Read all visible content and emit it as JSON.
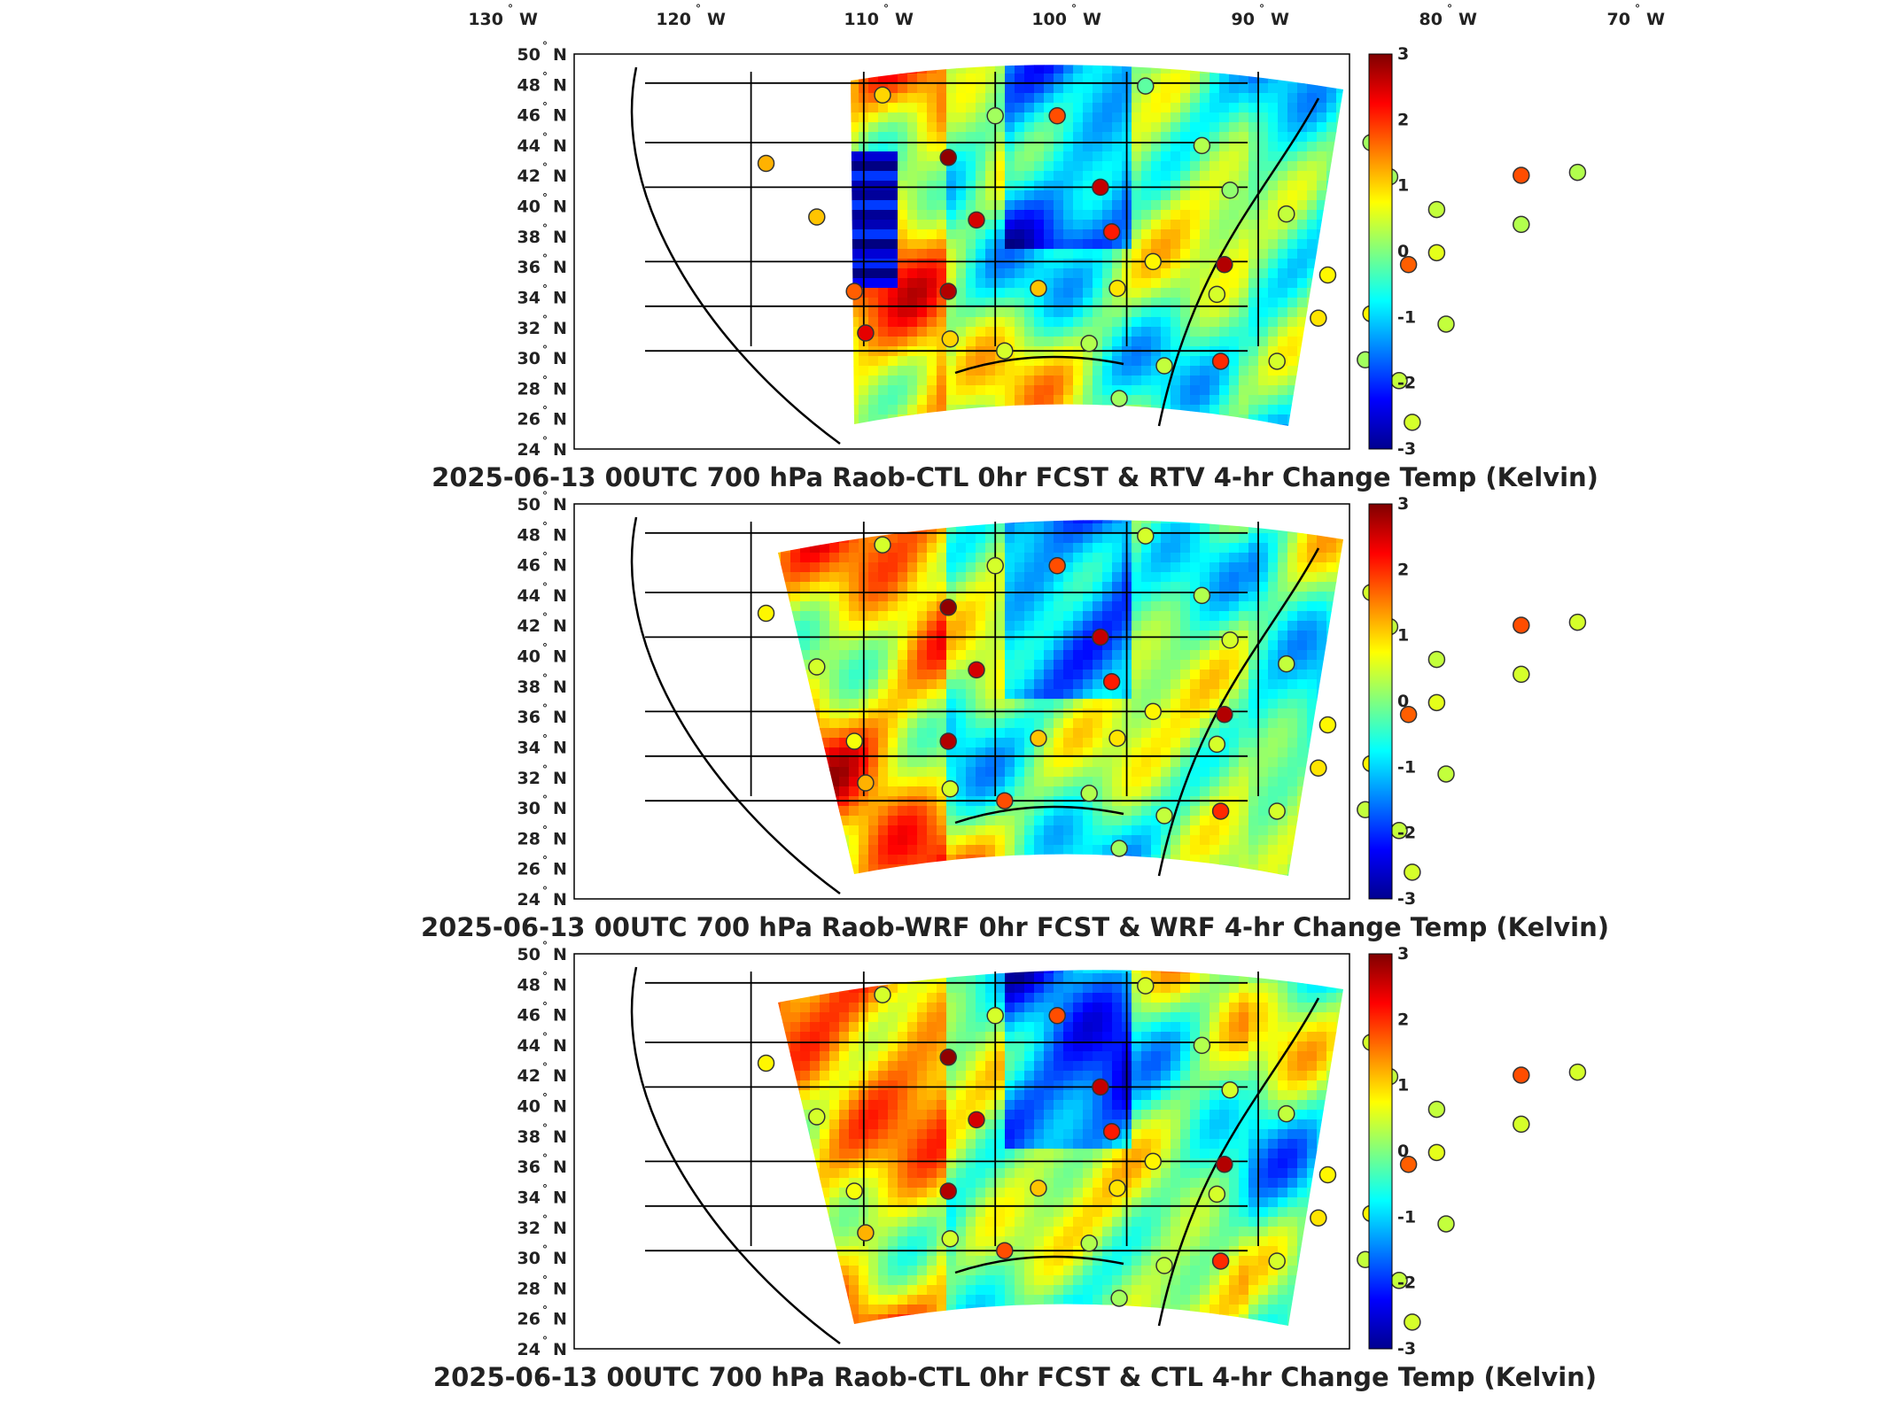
{
  "chart_data": {
    "type": "heatmap",
    "projection": "Lambert conformal, CONUS domain",
    "colormap": "jet",
    "grid": false,
    "legend": "colorbar right of each panel",
    "lon_ticks": [
      "130",
      "120",
      "110",
      "100",
      "90",
      "80",
      "70"
    ],
    "lon_hemisphere": "W",
    "lat_ticks": [
      "50",
      "48",
      "46",
      "44",
      "42",
      "40",
      "38",
      "36",
      "34",
      "32",
      "30",
      "28",
      "26",
      "24"
    ],
    "lat_hemisphere": "N",
    "colorbar": {
      "ticks": [
        "3",
        "2",
        "1",
        "0",
        "-1",
        "-2",
        "-3"
      ],
      "range": [
        -3,
        3
      ],
      "colors": [
        "#00008f",
        "#0000ff",
        "#00ffff",
        "#ffff00",
        "#ff0000",
        "#800000"
      ]
    },
    "stations": [
      {
        "lon": -110.0,
        "lat": 48.2
      },
      {
        "lon": -104.0,
        "lat": 46.8
      },
      {
        "lon": -100.7,
        "lat": 46.8
      },
      {
        "lon": -96.0,
        "lat": 48.8
      },
      {
        "lon": -93.0,
        "lat": 44.8
      },
      {
        "lon": -84.0,
        "lat": 45.0
      },
      {
        "lon": -106.5,
        "lat": 44.0
      },
      {
        "lon": -116.2,
        "lat": 43.6
      },
      {
        "lon": -98.4,
        "lat": 42.0
      },
      {
        "lon": -91.5,
        "lat": 41.8
      },
      {
        "lon": -88.5,
        "lat": 40.2
      },
      {
        "lon": -83.0,
        "lat": 42.7
      },
      {
        "lon": -76.0,
        "lat": 42.8
      },
      {
        "lon": -73.0,
        "lat": 43.0
      },
      {
        "lon": -113.5,
        "lat": 40.0
      },
      {
        "lon": -105.0,
        "lat": 39.8
      },
      {
        "lon": -97.8,
        "lat": 39.0
      },
      {
        "lon": -95.6,
        "lat": 37.0
      },
      {
        "lon": -91.8,
        "lat": 36.8
      },
      {
        "lon": -86.3,
        "lat": 36.1
      },
      {
        "lon": -80.5,
        "lat": 37.6
      },
      {
        "lon": -82.0,
        "lat": 36.8
      },
      {
        "lon": -76.0,
        "lat": 39.5
      },
      {
        "lon": -80.5,
        "lat": 40.5
      },
      {
        "lon": -111.5,
        "lat": 35.0
      },
      {
        "lon": -106.5,
        "lat": 35.0
      },
      {
        "lon": -101.7,
        "lat": 35.2
      },
      {
        "lon": -97.5,
        "lat": 35.2
      },
      {
        "lon": -92.2,
        "lat": 34.8
      },
      {
        "lon": -86.8,
        "lat": 33.2
      },
      {
        "lon": -84.0,
        "lat": 33.5
      },
      {
        "lon": -80.0,
        "lat": 32.8
      },
      {
        "lon": -110.9,
        "lat": 32.2
      },
      {
        "lon": -106.4,
        "lat": 31.8
      },
      {
        "lon": -103.5,
        "lat": 31.0
      },
      {
        "lon": -99.0,
        "lat": 31.5
      },
      {
        "lon": -95.0,
        "lat": 30.0
      },
      {
        "lon": -92.0,
        "lat": 30.3
      },
      {
        "lon": -89.0,
        "lat": 30.3
      },
      {
        "lon": -84.3,
        "lat": 30.4
      },
      {
        "lon": -97.4,
        "lat": 27.8
      },
      {
        "lon": -81.8,
        "lat": 26.2
      },
      {
        "lon": -82.5,
        "lat": 29.0
      }
    ],
    "panels": [
      {
        "title": "2025-06-13 00UTC 700 hPa Raob-CTL 0hr FCST & RTV 4-hr Change Temp (Kelvin)",
        "raob_minus_model": [
          1,
          0.2,
          1.8,
          -0.2,
          0.3,
          0.2,
          2.9,
          1.2,
          2.6,
          0.1,
          0.4,
          0.2,
          1.8,
          0.3,
          1.1,
          2.5,
          2.1,
          0.8,
          2.7,
          0.8,
          0.6,
          1.7,
          0.3,
          0.4,
          1.7,
          2.7,
          1.1,
          0.9,
          0.5,
          0.9,
          0.8,
          0.4,
          2.4,
          1.0,
          0.5,
          0.3,
          0.4,
          2.0,
          0.5,
          0.2,
          0.2,
          0.5,
          0.4
        ]
      },
      {
        "title": "2025-06-13 00UTC 700 hPa Raob-WRF 0hr FCST & WRF 4-hr Change Temp (Kelvin)",
        "raob_minus_model": [
          0.5,
          0.5,
          1.8,
          0.5,
          0.3,
          0.5,
          2.9,
          0.8,
          2.6,
          0.5,
          0.4,
          0.4,
          1.8,
          0.5,
          0.5,
          2.5,
          2.1,
          0.8,
          2.7,
          0.8,
          0.6,
          1.7,
          0.5,
          0.4,
          0.7,
          2.7,
          1.1,
          0.9,
          0.5,
          0.9,
          0.8,
          0.4,
          1.2,
          0.5,
          1.8,
          0.3,
          0.4,
          2.0,
          0.5,
          0.4,
          0.2,
          0.5,
          0.4
        ]
      },
      {
        "title": "2025-06-13 00UTC 700 hPa Raob-CTL 0hr FCST & CTL 4-hr Change Temp (Kelvin)",
        "raob_minus_model": [
          0.5,
          0.5,
          1.8,
          0.5,
          0.3,
          0.5,
          2.9,
          0.8,
          2.6,
          0.5,
          0.4,
          0.4,
          1.8,
          0.5,
          0.5,
          2.5,
          2.1,
          0.8,
          2.7,
          0.8,
          0.6,
          1.7,
          0.5,
          0.4,
          0.7,
          2.7,
          1.1,
          0.9,
          0.5,
          0.9,
          0.8,
          0.4,
          1.2,
          0.5,
          1.8,
          0.3,
          0.4,
          2.0,
          0.5,
          0.4,
          0.2,
          0.5,
          0.4
        ]
      }
    ]
  }
}
